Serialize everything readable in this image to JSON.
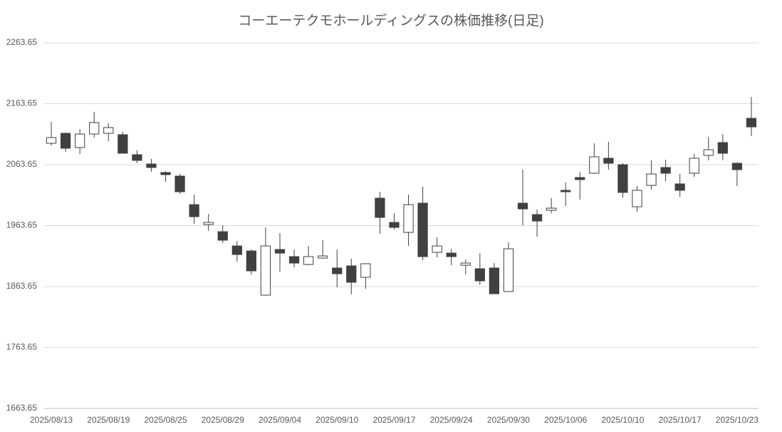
{
  "chart_data": {
    "type": "candlestick",
    "title": "コーエーテクモホールディングスの株価推移(日足)",
    "categories": [
      "2025/08/13",
      null,
      null,
      null,
      "2025/08/19",
      null,
      null,
      null,
      "2025/08/25",
      null,
      null,
      null,
      "2025/08/29",
      null,
      null,
      null,
      "2025/09/04",
      null,
      null,
      null,
      "2025/09/10",
      null,
      null,
      null,
      "2025/09/17",
      null,
      null,
      null,
      "2025/09/24",
      null,
      null,
      null,
      "2025/09/30",
      null,
      null,
      null,
      "2025/10/06",
      null,
      null,
      null,
      "2025/10/10",
      null,
      null,
      null,
      "2025/10/17",
      null,
      null,
      null,
      "2025/10/23",
      null
    ],
    "open": [
      2098.7,
      2115.1,
      2091.7,
      2113.9,
      2115.1,
      2112.8,
      2080.0,
      2064.8,
      2050.8,
      2044.9,
      1998.1,
      1965.4,
      1953.7,
      1930.3,
      1922.1,
      1849.6,
      1924.5,
      1912.8,
      1899.9,
      1910.4,
      1894.1,
      1897.6,
      1878.9,
      2008.7,
      1968.9,
      1952.5,
      2000.5,
      1919.8,
      1918.6,
      1898.7,
      1892.9,
      1894.1,
      1855.5,
      2000.5,
      1981.8,
      1988.8,
      2021.6,
      2042.6,
      2049.6,
      2074.2,
      2063.7,
      1994.6,
      2029.7,
      2059.0,
      2032.1,
      2049.6,
      2078.9,
      2099.9,
      2066.0,
      2139.7
    ],
    "high": [
      2133.8,
      2116.3,
      2122.1,
      2150.2,
      2131.5,
      2117.5,
      2087.1,
      2073.0,
      2053.1,
      2048.4,
      2014.5,
      1983.0,
      1964.2,
      1938.5,
      1924.5,
      1960.7,
      1951.4,
      1924.5,
      1930.3,
      1939.7,
      1924.5,
      1909.3,
      1901.1,
      2019.2,
      1984.1,
      2014.5,
      2027.4,
      1944.3,
      1925.6,
      1908.1,
      1918.6,
      1902.2,
      1936.2,
      2055.5,
      1990.0,
      2008.7,
      2034.4,
      2052.0,
      2098.7,
      2101.1,
      2066.0,
      2028.6,
      2070.7,
      2071.8,
      2048.4,
      2081.2,
      2109.3,
      2113.9,
      2067.2,
      2174.8
    ],
    "low": [
      2095.2,
      2084.7,
      2081.2,
      2108.1,
      2102.2,
      2082.4,
      2066.0,
      2052.0,
      2035.6,
      2015.7,
      1966.6,
      1954.9,
      1935.0,
      1904.6,
      1883.5,
      1849.6,
      1888.2,
      1895.2,
      1898.7,
      1909.3,
      1862.5,
      1850.8,
      1860.1,
      1950.2,
      1957.2,
      1930.3,
      1906.9,
      1911.6,
      1898.7,
      1883.5,
      1866.0,
      1851.9,
      1855.5,
      1964.2,
      1945.5,
      1984.1,
      1995.8,
      2006.3,
      2048.4,
      2055.5,
      2009.9,
      1986.5,
      2022.7,
      2036.7,
      2011.0,
      2043.8,
      2070.7,
      2070.7,
      2028.6,
      2110.4
    ],
    "close": [
      2108.1,
      2090.6,
      2113.9,
      2132.7,
      2124.5,
      2082.4,
      2070.7,
      2059.0,
      2047.3,
      2019.2,
      1978.3,
      1968.9,
      1939.7,
      1916.3,
      1889.4,
      1930.3,
      1918.6,
      1902.2,
      1912.8,
      1913.9,
      1884.7,
      1870.7,
      1901.1,
      1977.1,
      1960.7,
      1998.1,
      1912.8,
      1930.3,
      1912.8,
      1902.2,
      1873.0,
      1851.9,
      1925.6,
      1991.1,
      1971.2,
      1992.3,
      2019.2,
      2039.1,
      2076.5,
      2066.0,
      2018.1,
      2021.6,
      2048.4,
      2049.6,
      2021.6,
      2074.2,
      2088.2,
      2082.4,
      2055.5,
      2125.6
    ],
    "up_color": "#ffffff",
    "down_color": "#404040",
    "line_color": "#404040",
    "ylim": [
      1663.65,
      2263.65
    ],
    "yticks": [
      1663.65,
      1763.65,
      1863.65,
      1963.65,
      2063.65,
      2163.65,
      2263.65
    ],
    "grid": true
  }
}
